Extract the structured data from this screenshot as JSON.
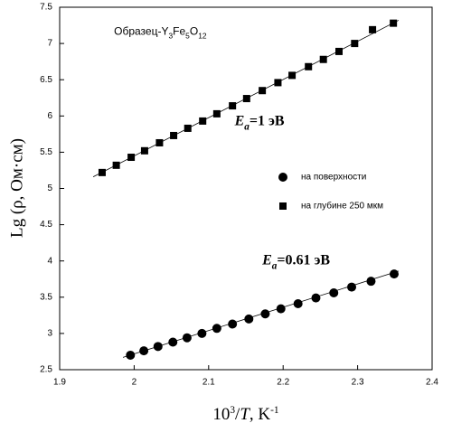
{
  "chart_data": {
    "type": "scatter",
    "xlim": [
      1.9,
      2.4
    ],
    "ylim": [
      2.5,
      7.5
    ],
    "xticks": [
      1.9,
      2,
      2.1,
      2.2,
      2.3,
      2.4
    ],
    "yticks": [
      2.5,
      3,
      3.5,
      4,
      4.5,
      5,
      5.5,
      6,
      6.5,
      7,
      7.5
    ],
    "x_label": [
      {
        "text": "10"
      },
      {
        "text": "3",
        "sup": true
      },
      {
        "text": "/"
      },
      {
        "text": "T",
        "italic": true
      },
      {
        "text": ", K"
      },
      {
        "text": "-1",
        "sup": true
      }
    ],
    "y_label": "Lg (ρ, Ом·см)",
    "annotations": [
      {
        "parts": [
          {
            "text": "Образец-Y"
          },
          {
            "text": "3",
            "sub": true
          },
          {
            "text": "Fe"
          },
          {
            "text": "5",
            "sub": true
          },
          {
            "text": "O"
          },
          {
            "text": "12",
            "sub": true
          }
        ],
        "serif": false,
        "x": 1.973,
        "y": 7.16
      },
      {
        "parts": [
          {
            "text": "E",
            "italic": true
          },
          {
            "text": "a",
            "sub": true,
            "italic": true
          },
          {
            "text": "=1 эВ"
          }
        ],
        "serif": true,
        "x": 2.135,
        "y": 5.92
      },
      {
        "parts": [
          {
            "text": "E",
            "italic": true
          },
          {
            "text": "a",
            "sub": true,
            "italic": true
          },
          {
            "text": "=0.61 эВ"
          }
        ],
        "serif": true,
        "x": 2.172,
        "y": 4.0
      }
    ],
    "series": [
      {
        "name": "на поверхности",
        "marker": "circle",
        "color": "#000000",
        "x": [
          1.995,
          2.013,
          2.032,
          2.052,
          2.071,
          2.091,
          2.111,
          2.132,
          2.154,
          2.176,
          2.197,
          2.22,
          2.244,
          2.268,
          2.292,
          2.318,
          2.349
        ],
        "values": [
          2.7,
          2.76,
          2.82,
          2.88,
          2.94,
          3.0,
          3.07,
          3.13,
          3.2,
          3.27,
          3.34,
          3.41,
          3.49,
          3.56,
          3.64,
          3.72,
          3.82
        ],
        "fit_x": [
          1.985,
          2.355
        ],
        "fit_y": [
          2.67,
          3.86
        ]
      },
      {
        "name": "на глубине 250 мкм",
        "marker": "square",
        "color": "#000000",
        "x": [
          1.957,
          1.976,
          1.996,
          2.014,
          2.034,
          2.053,
          2.072,
          2.092,
          2.111,
          2.132,
          2.151,
          2.172,
          2.193,
          2.212,
          2.234,
          2.254,
          2.275,
          2.296,
          2.32,
          2.348
        ],
        "values": [
          5.22,
          5.32,
          5.43,
          5.52,
          5.63,
          5.73,
          5.83,
          5.93,
          6.03,
          6.14,
          6.24,
          6.35,
          6.46,
          6.56,
          6.68,
          6.78,
          6.89,
          7.0,
          7.19,
          7.28
        ],
        "fit_x": [
          1.945,
          2.355
        ],
        "fit_y": [
          5.16,
          7.32
        ]
      }
    ]
  }
}
